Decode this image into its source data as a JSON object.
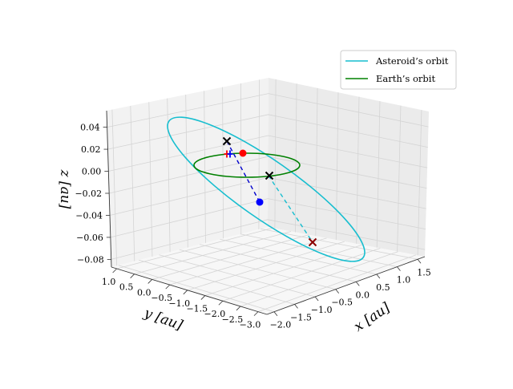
{
  "chart_data": {
    "type": "3d-line",
    "projection": "3d",
    "grid": true,
    "legend_position": "top-right",
    "axes": {
      "x": {
        "label": "x [au]",
        "ticks": [
          "−2.0",
          "−1.5",
          "−1.0",
          "−0.5",
          "0.0",
          "0.5",
          "1.0",
          "1.5"
        ]
      },
      "y": {
        "label": "y [au]",
        "ticks": [
          "1.0",
          "0.5",
          "0.0",
          "−0.5",
          "−1.0",
          "−1.5",
          "−2.0",
          "−2.5",
          "−3.0"
        ]
      },
      "z": {
        "label": "z [au]",
        "ticks": [
          "−0.08",
          "−0.06",
          "−0.04",
          "−0.02",
          "0.00",
          "0.02",
          "0.04"
        ]
      }
    },
    "series": [
      {
        "name": "Asteroid’s orbit",
        "color": "#17becf",
        "shape": "ellipse"
      },
      {
        "name": "Earth’s orbit",
        "color": "#008000",
        "shape": "circle"
      }
    ],
    "markers": [
      {
        "symbol": "dot",
        "color": "#ff0000"
      },
      {
        "symbol": "dot",
        "color": "#0000ff"
      },
      {
        "symbol": "x",
        "color": "#000000"
      },
      {
        "symbol": "x",
        "color": "#000000"
      },
      {
        "symbol": "x",
        "color": "#8b0000"
      },
      {
        "symbol": "plus",
        "color": "#ff0000"
      },
      {
        "symbol": "plus",
        "color": "#0000ff"
      }
    ]
  }
}
